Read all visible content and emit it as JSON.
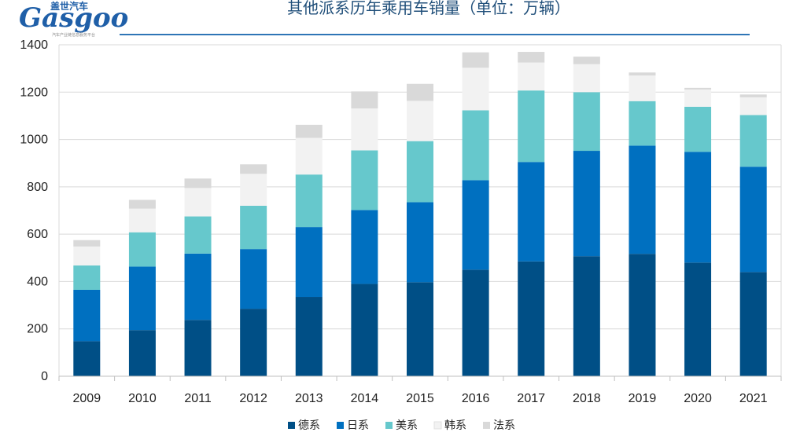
{
  "logo": {
    "brand": "Gasgoo",
    "brand_cn": "盖世汽车",
    "tagline": "汽车产业链信息服务平台"
  },
  "colors": {
    "title": "#1f4e79",
    "title_rule": "#2e75b6",
    "grid": "#d9d9d9"
  },
  "chart_data": {
    "type": "bar",
    "stacked": true,
    "title": "其他派系历年乘用车销量（单位：万辆）",
    "categories": [
      "2009",
      "2010",
      "2011",
      "2012",
      "2013",
      "2014",
      "2015",
      "2016",
      "2017",
      "2018",
      "2019",
      "2020",
      "2021"
    ],
    "ylim": [
      0,
      1400
    ],
    "yticks": [
      0,
      200,
      400,
      600,
      800,
      1000,
      1200,
      1400
    ],
    "grid": true,
    "legend_position": "bottom",
    "series": [
      {
        "name": "德系",
        "color": "#004f86",
        "values": [
          148,
          195,
          238,
          285,
          335,
          390,
          397,
          450,
          485,
          507,
          517,
          480,
          440
        ]
      },
      {
        "name": "日系",
        "color": "#0070c0",
        "values": [
          217,
          268,
          280,
          252,
          295,
          312,
          338,
          378,
          420,
          445,
          457,
          468,
          445
        ]
      },
      {
        "name": "美系",
        "color": "#66c8cc",
        "values": [
          103,
          145,
          157,
          183,
          222,
          252,
          258,
          295,
          302,
          248,
          188,
          190,
          218
        ]
      },
      {
        "name": "韩系",
        "color": "#f2f2f2",
        "values": [
          80,
          100,
          120,
          135,
          155,
          177,
          170,
          180,
          118,
          118,
          108,
          73,
          75
        ]
      },
      {
        "name": "法系",
        "color": "#d9d9d9",
        "values": [
          27,
          37,
          40,
          40,
          55,
          72,
          72,
          65,
          45,
          32,
          13,
          7,
          12
        ]
      }
    ]
  }
}
